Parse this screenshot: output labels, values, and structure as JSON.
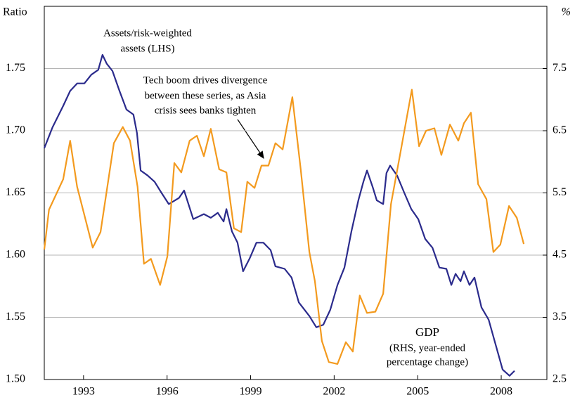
{
  "chart_data": {
    "type": "line",
    "y_label": "Ratio",
    "y2_label": "%",
    "xlim": [
      1991.59,
      2009.64
    ],
    "xticks": [
      1993,
      1996,
      1999,
      2002,
      2005,
      2008
    ],
    "ylim": [
      1.5,
      1.8
    ],
    "yticks": [
      {
        "value": 1.5,
        "label": "1.50"
      },
      1.55,
      {
        "value": 1.6,
        "label": "1.60"
      },
      1.65,
      {
        "value": 1.7,
        "label": "1.70"
      },
      1.75
    ],
    "y2lim": [
      2.5,
      8.5
    ],
    "y2ticks": [
      2.5,
      3.5,
      4.5,
      5.5,
      6.5,
      7.5
    ],
    "grid": true,
    "series": [
      {
        "name": [
          "Assets/risk-weighted",
          "assets (LHS)"
        ],
        "color": "#2b2b8c",
        "axis": "y",
        "x": [
          1991.59,
          1991.89,
          1992.27,
          1992.52,
          1992.77,
          1993.03,
          1993.28,
          1993.53,
          1993.68,
          1993.83,
          1994.04,
          1994.29,
          1994.54,
          1994.79,
          1994.92,
          1995.05,
          1995.3,
          1995.55,
          1995.8,
          1996.06,
          1996.43,
          1996.61,
          1996.94,
          1997.32,
          1997.57,
          1997.82,
          1998.03,
          1998.13,
          1998.33,
          1998.53,
          1998.73,
          1998.96,
          1999.21,
          1999.46,
          1999.72,
          1999.89,
          2000.22,
          2000.47,
          2000.73,
          2001.11,
          2001.36,
          2001.61,
          2001.86,
          2002.12,
          2002.37,
          2002.62,
          2002.87,
          2003.05,
          2003.18,
          2003.38,
          2003.53,
          2003.76,
          2003.88,
          2004.01,
          2004.26,
          2004.52,
          2004.77,
          2005.02,
          2005.27,
          2005.53,
          2005.78,
          2006.03,
          2006.21,
          2006.36,
          2006.54,
          2006.66,
          2006.86,
          2007.04,
          2007.29,
          2007.55,
          2007.8,
          2008.05,
          2008.3,
          2008.48
        ],
        "values": [
          1.686,
          1.703,
          1.72,
          1.732,
          1.738,
          1.738,
          1.745,
          1.749,
          1.761,
          1.754,
          1.748,
          1.732,
          1.717,
          1.713,
          1.698,
          1.668,
          1.664,
          1.659,
          1.65,
          1.641,
          1.646,
          1.652,
          1.629,
          1.633,
          1.63,
          1.634,
          1.627,
          1.637,
          1.619,
          1.61,
          1.587,
          1.597,
          1.61,
          1.61,
          1.604,
          1.591,
          1.589,
          1.582,
          1.562,
          1.551,
          1.542,
          1.544,
          1.556,
          1.576,
          1.59,
          1.619,
          1.644,
          1.659,
          1.668,
          1.655,
          1.644,
          1.641,
          1.666,
          1.672,
          1.664,
          1.65,
          1.637,
          1.629,
          1.613,
          1.606,
          1.59,
          1.589,
          1.576,
          1.585,
          1.579,
          1.587,
          1.576,
          1.582,
          1.558,
          1.548,
          1.528,
          1.508,
          1.503,
          1.507
        ]
      },
      {
        "name": [
          "GDP",
          "(RHS, year-ended",
          "percentage change)"
        ],
        "color": "#f39a1e",
        "axis": "y2",
        "x": [
          1991.59,
          1991.76,
          1992.27,
          1992.52,
          1992.77,
          1993.33,
          1993.61,
          1994.09,
          1994.41,
          1994.67,
          1994.94,
          1995.17,
          1995.42,
          1995.75,
          1996.01,
          1996.26,
          1996.51,
          1996.81,
          1997.07,
          1997.32,
          1997.57,
          1997.87,
          1998.13,
          1998.4,
          1998.66,
          1998.88,
          1999.14,
          1999.39,
          1999.64,
          1999.89,
          2000.15,
          2000.5,
          2000.8,
          2001.11,
          2001.31,
          2001.56,
          2001.81,
          2002.12,
          2002.42,
          2002.67,
          2002.92,
          2003.18,
          2003.48,
          2003.76,
          2004.04,
          2004.39,
          2004.79,
          2005.05,
          2005.3,
          2005.6,
          2005.85,
          2006.16,
          2006.46,
          2006.66,
          2006.91,
          2007.17,
          2007.47,
          2007.72,
          2007.97,
          2008.28,
          2008.56,
          2008.81
        ],
        "values": [
          4.59,
          5.23,
          5.72,
          6.34,
          5.6,
          4.62,
          4.87,
          6.3,
          6.56,
          6.34,
          5.6,
          4.36,
          4.44,
          4.02,
          4.48,
          5.98,
          5.83,
          6.34,
          6.42,
          6.09,
          6.53,
          5.88,
          5.83,
          4.93,
          4.87,
          5.68,
          5.58,
          5.94,
          5.94,
          6.3,
          6.2,
          7.04,
          5.88,
          4.55,
          4.08,
          3.12,
          2.78,
          2.75,
          3.1,
          2.95,
          3.85,
          3.57,
          3.59,
          3.88,
          5.32,
          6.17,
          7.16,
          6.25,
          6.5,
          6.54,
          6.11,
          6.6,
          6.34,
          6.62,
          6.79,
          5.64,
          5.4,
          4.55,
          4.67,
          5.29,
          5.1,
          4.68
        ]
      }
    ],
    "annotation": [
      "Tech boom drives divergence",
      "between these series, as Asia",
      "crisis sees banks tighten"
    ]
  }
}
